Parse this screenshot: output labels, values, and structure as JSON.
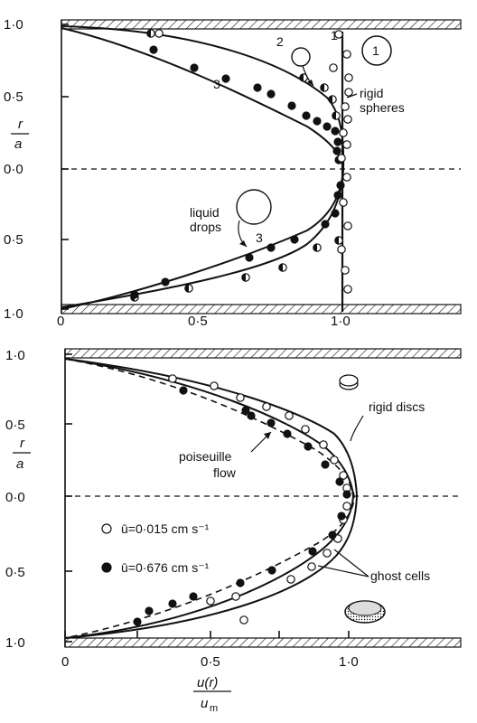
{
  "chart_data": [
    {
      "type": "scatter",
      "panel": "top",
      "xlabel": "",
      "ylabel_num": "r",
      "ylabel_den": "a",
      "xlim": [
        0,
        1.2
      ],
      "ylim": [
        -1.0,
        1.0
      ],
      "x_ticks": [
        "0",
        "0·5",
        "1·0"
      ],
      "y_ticks": [
        "1·0",
        "0·5",
        "0·0",
        "0·5",
        "1·0"
      ],
      "annotations": {
        "rigid_line": "rigid",
        "rigid_line2": "spheres",
        "drops_line": "liquid",
        "drops_line2": "drops",
        "label_1": "1",
        "label_1_circle": "1",
        "label_2": "2",
        "label_3_upper": "3",
        "label_3_lower": "3"
      },
      "series": [
        {
          "id": "curve-2",
          "style": "solid-line",
          "points": [
            [
              0.97,
              1.0
            ],
            [
              0.955,
              0.6
            ],
            [
              0.93,
              0.4
            ],
            [
              0.87,
              0.1
            ],
            [
              0.8,
              0.0
            ],
            [
              0.72,
              -0.1
            ],
            [
              0.6,
              -0.25
            ],
            [
              0.4,
              -0.45
            ],
            [
              0.22,
              -0.6
            ],
            [
              0.0,
              -0.8
            ]
          ]
        },
        {
          "id": "curve-3",
          "style": "solid-line",
          "points": [
            [
              0.98,
              1.0
            ],
            [
              0.97,
              0.9
            ],
            [
              0.93,
              0.75
            ],
            [
              0.85,
              0.55
            ],
            [
              0.7,
              0.35
            ],
            [
              0.5,
              0.15
            ],
            [
              0.3,
              0.0
            ],
            [
              0.1,
              -0.2
            ],
            [
              0.0,
              -0.3
            ]
          ]
        },
        {
          "id": "spheres-open",
          "marker": "open",
          "points": [
            [
              1.01,
              0.85
            ],
            [
              1.02,
              0.75
            ],
            [
              1.01,
              0.65
            ],
            [
              1.0,
              0.55
            ],
            [
              0.99,
              0.45
            ],
            [
              1.02,
              0.35
            ],
            [
              1.0,
              0.25
            ],
            [
              0.99,
              0.15
            ],
            [
              1.0,
              0.05
            ],
            [
              1.01,
              -0.05
            ],
            [
              1.0,
              -0.15
            ],
            [
              1.02,
              -0.3
            ],
            [
              0.99,
              -0.45
            ],
            [
              1.01,
              -0.6
            ],
            [
              1.0,
              -0.75
            ],
            [
              1.02,
              -0.85
            ]
          ]
        },
        {
          "id": "drops-half",
          "marker": "half",
          "points": [
            [
              0.36,
              0.97
            ],
            [
              0.42,
              0.96
            ],
            [
              0.6,
              0.94
            ],
            [
              0.72,
              0.9
            ],
            [
              0.83,
              0.83
            ],
            [
              0.9,
              0.7
            ],
            [
              0.93,
              0.6
            ],
            [
              0.96,
              0.48
            ],
            [
              0.97,
              0.38
            ],
            [
              0.98,
              0.25
            ],
            [
              0.96,
              0.12
            ],
            [
              0.97,
              -0.1
            ],
            [
              0.94,
              -0.28
            ],
            [
              0.88,
              -0.45
            ],
            [
              0.76,
              -0.6
            ],
            [
              0.58,
              -0.7
            ],
            [
              0.48,
              -0.78
            ],
            [
              0.38,
              -0.82
            ]
          ]
        },
        {
          "id": "drops-filled",
          "marker": "filled",
          "points": [
            [
              0.4,
              0.91
            ],
            [
              0.52,
              0.85
            ],
            [
              0.63,
              0.78
            ],
            [
              0.73,
              0.68
            ],
            [
              0.82,
              0.55
            ],
            [
              0.88,
              0.45
            ],
            [
              0.92,
              0.35
            ],
            [
              0.94,
              0.28
            ],
            [
              0.96,
              0.18
            ],
            [
              0.97,
              0.1
            ],
            [
              0.96,
              0.05
            ],
            [
              0.97,
              -0.06
            ],
            [
              0.95,
              -0.15
            ],
            [
              0.9,
              -0.24
            ],
            [
              0.8,
              -0.36
            ],
            [
              0.7,
              -0.45
            ],
            [
              0.6,
              -0.53
            ],
            [
              0.44,
              -0.63
            ],
            [
              0.32,
              -0.7
            ],
            [
              0.22,
              -0.75
            ],
            [
              0.12,
              -0.8
            ]
          ]
        }
      ]
    },
    {
      "type": "scatter",
      "panel": "bottom",
      "xlabel_num": "u(r)",
      "xlabel_den": "u",
      "xlabel_sub": "m",
      "ylabel_num": "r",
      "ylabel_den": "a",
      "xlim": [
        0,
        1.2
      ],
      "ylim": [
        -1.0,
        1.0
      ],
      "x_ticks": [
        "0",
        "0·5",
        "1·0"
      ],
      "y_ticks": [
        "1·0",
        "0·5",
        "0·0",
        "0·5",
        "1·0"
      ],
      "annotations": {
        "rigid_discs": "rigid discs",
        "poiseuille": "poiseuille",
        "poiseuille2": "flow",
        "ghost_cells": "ghost cells"
      },
      "legend": {
        "open": "ū=0·015 cm s⁻¹",
        "filled": "ū=0·676 cm s⁻¹"
      },
      "series": [
        {
          "id": "poiseuille-curve",
          "style": "dashed-line",
          "points": [
            [
              1.0,
              0.0
            ],
            [
              0.99,
              0.1
            ],
            [
              0.96,
              0.2
            ],
            [
              0.91,
              0.3
            ],
            [
              0.84,
              0.4
            ],
            [
              0.75,
              0.5
            ],
            [
              0.64,
              0.6
            ],
            [
              0.51,
              0.7
            ],
            [
              0.36,
              0.8
            ],
            [
              0.19,
              0.9
            ],
            [
              0.0,
              1.0
            ]
          ]
        },
        {
          "id": "rigid-discs-curve",
          "style": "solid-line",
          "points": [
            [
              1.02,
              0.0
            ],
            [
              1.02,
              0.1
            ],
            [
              1.01,
              0.2
            ],
            [
              1.0,
              0.3
            ],
            [
              0.98,
              0.4
            ],
            [
              0.94,
              0.5
            ],
            [
              0.88,
              0.6
            ],
            [
              0.78,
              0.7
            ],
            [
              0.62,
              0.8
            ],
            [
              0.38,
              0.9
            ],
            [
              0.0,
              1.0
            ]
          ]
        },
        {
          "id": "ghost-cells-curve",
          "style": "solid-line",
          "points": [
            [
              1.0,
              0.0
            ],
            [
              0.99,
              0.1
            ],
            [
              0.97,
              0.2
            ],
            [
              0.93,
              0.3
            ],
            [
              0.87,
              0.4
            ],
            [
              0.79,
              0.5
            ],
            [
              0.69,
              0.6
            ],
            [
              0.56,
              0.7
            ],
            [
              0.41,
              0.8
            ],
            [
              0.22,
              0.9
            ],
            [
              0.0,
              1.0
            ]
          ]
        },
        {
          "id": "open-markers",
          "marker": "open",
          "points": [
            [
              0.38,
              0.88
            ],
            [
              0.56,
              0.8
            ],
            [
              0.66,
              0.71
            ],
            [
              0.75,
              0.62
            ],
            [
              0.84,
              0.52
            ],
            [
              0.89,
              0.42
            ],
            [
              0.94,
              0.33
            ],
            [
              0.97,
              0.23
            ],
            [
              0.99,
              0.12
            ],
            [
              1.0,
              0.02
            ],
            [
              0.99,
              -0.08
            ],
            [
              0.97,
              -0.18
            ],
            [
              0.93,
              -0.3
            ],
            [
              0.87,
              -0.42
            ],
            [
              0.78,
              -0.52
            ],
            [
              0.66,
              -0.62
            ],
            [
              0.54,
              -0.73
            ],
            [
              0.4,
              -0.82
            ],
            [
              0.25,
              -0.9
            ]
          ]
        },
        {
          "id": "filled-markers",
          "marker": "filled",
          "points": [
            [
              0.44,
              0.85
            ],
            [
              0.64,
              0.73
            ],
            [
              0.69,
              0.71
            ],
            [
              0.72,
              0.62
            ],
            [
              0.78,
              0.56
            ],
            [
              0.83,
              0.48
            ],
            [
              0.9,
              0.38
            ],
            [
              0.95,
              0.28
            ],
            [
              0.98,
              0.17
            ],
            [
              0.99,
              0.06
            ],
            [
              0.98,
              -0.06
            ],
            [
              0.96,
              -0.16
            ],
            [
              0.92,
              -0.28
            ],
            [
              0.84,
              -0.4
            ],
            [
              0.74,
              -0.5
            ],
            [
              0.62,
              -0.6
            ],
            [
              0.5,
              -0.7
            ],
            [
              0.36,
              -0.78
            ],
            [
              0.2,
              -0.88
            ]
          ]
        }
      ]
    }
  ]
}
